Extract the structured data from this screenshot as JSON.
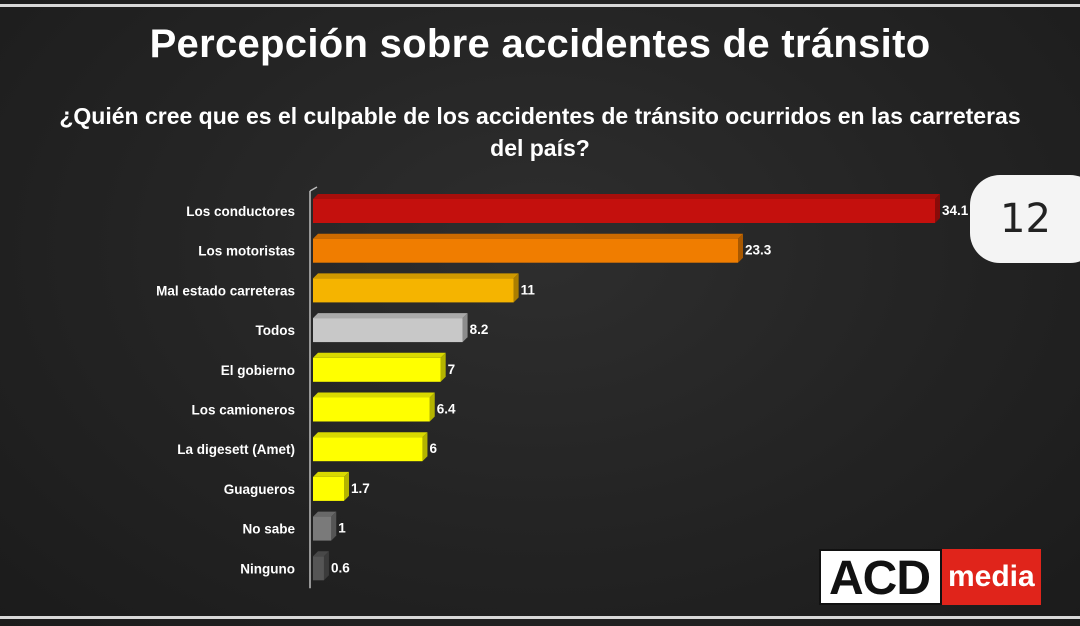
{
  "title": "Percepción sobre accidentes de tránsito",
  "question": "¿Quién cree que es el culpable de los accidentes de tránsito ocurridos en las carreteras del país?",
  "page_number": "12",
  "logo": {
    "main": "ACD",
    "sub": "media"
  },
  "chart_data": {
    "type": "bar",
    "orientation": "horizontal",
    "categories": [
      "Los conductores",
      "Los motoristas",
      "Mal estado carreteras",
      "Todos",
      "El gobierno",
      "Los camioneros",
      "La digesett (Amet)",
      "Guagueros",
      "No sabe",
      "Ninguno"
    ],
    "values": [
      34.1,
      23.3,
      11,
      8.2,
      7,
      6.4,
      6,
      1.7,
      1,
      0.6
    ],
    "value_labels": [
      "34.1",
      "23.3",
      "11",
      "8.2",
      "7",
      "6.4",
      "6",
      "1.7",
      "1",
      "0.6"
    ],
    "colors": [
      "#c4100d",
      "#f07d00",
      "#f5b400",
      "#c8c8c8",
      "#ffff00",
      "#ffff00",
      "#ffff00",
      "#ffff00",
      "#7a7a7a",
      "#555555"
    ],
    "xlim": [
      0,
      34.1
    ],
    "grid": false,
    "legend": "none"
  }
}
